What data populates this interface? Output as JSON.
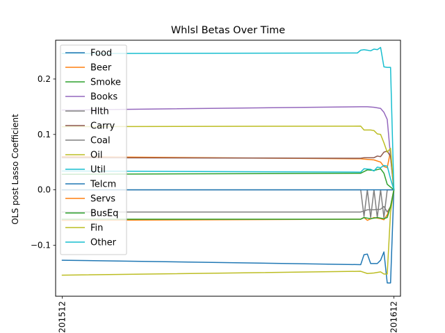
{
  "chart_data": {
    "type": "line",
    "title": "Whlsl Betas Over Time",
    "ylabel": "OLS post Lasso Coefficient",
    "xlabel": "",
    "x_tick_labels": [
      "201512",
      "201612"
    ],
    "y_ticks": [
      -0.1,
      0.0,
      0.1,
      0.2
    ],
    "y_tick_labels": [
      "−0.1",
      "0.0",
      "0.1",
      "0.2"
    ],
    "x_range": [
      -2,
      102
    ],
    "ylim": [
      -0.192,
      0.27
    ],
    "legend_position": "upper-left",
    "grid": false,
    "series": [
      {
        "name": "Food",
        "color": "#1f77b4",
        "points": [
          [
            0,
            -0.127
          ],
          [
            90,
            -0.135
          ],
          [
            91,
            -0.117
          ],
          [
            92,
            -0.116
          ],
          [
            93,
            -0.133
          ],
          [
            95,
            -0.133
          ],
          [
            96,
            -0.127
          ],
          [
            97,
            -0.112
          ],
          [
            98,
            -0.168
          ],
          [
            99,
            -0.168
          ],
          [
            100,
            0.0
          ]
        ]
      },
      {
        "name": "Beer",
        "color": "#ff7f0e",
        "points": [
          [
            0,
            0.06
          ],
          [
            90,
            0.056
          ],
          [
            92,
            0.055
          ],
          [
            94,
            0.054
          ],
          [
            96,
            0.05
          ],
          [
            97,
            0.042
          ],
          [
            98,
            0.04
          ],
          [
            99,
            0.07
          ],
          [
            100,
            0.0
          ]
        ]
      },
      {
        "name": "Smoke",
        "color": "#2ca02c",
        "points": [
          [
            0,
            0.028
          ],
          [
            90,
            0.03
          ],
          [
            92,
            0.036
          ],
          [
            94,
            0.035
          ],
          [
            96,
            0.038
          ],
          [
            97,
            0.03
          ],
          [
            98,
            0.01
          ],
          [
            99,
            0.005
          ],
          [
            100,
            0.0
          ]
        ]
      },
      {
        "name": "Books",
        "color": "#9467bd",
        "points": [
          [
            0,
            0.144
          ],
          [
            90,
            0.15
          ],
          [
            92,
            0.15
          ],
          [
            94,
            0.149
          ],
          [
            96,
            0.147
          ],
          [
            97,
            0.14
          ],
          [
            98,
            0.127
          ],
          [
            99,
            0.06
          ],
          [
            100,
            0.0
          ]
        ]
      },
      {
        "name": "Hlth",
        "color": "#7f7f7f",
        "points": [
          [
            0,
            -0.04
          ],
          [
            90,
            -0.04
          ],
          [
            92,
            -0.036
          ],
          [
            94,
            -0.036
          ],
          [
            96,
            -0.035
          ],
          [
            97,
            -0.03
          ],
          [
            98,
            -0.04
          ],
          [
            99,
            -0.03
          ],
          [
            100,
            0.0
          ]
        ]
      },
      {
        "name": "Carry",
        "color": "#8c564b",
        "points": [
          [
            0,
            0.058
          ],
          [
            90,
            0.057
          ],
          [
            91,
            0.058
          ],
          [
            94,
            0.058
          ],
          [
            95,
            0.061
          ],
          [
            96,
            0.06
          ],
          [
            97,
            0.068
          ],
          [
            98,
            0.07
          ],
          [
            99,
            0.06
          ],
          [
            100,
            0.0
          ]
        ]
      },
      {
        "name": "Coal",
        "color": "#7f7f7f",
        "points": [
          [
            0,
            0.0
          ],
          [
            90,
            0.0
          ],
          [
            91,
            -0.048
          ],
          [
            92,
            0.0
          ],
          [
            93,
            -0.05
          ],
          [
            94,
            0.0
          ],
          [
            95,
            -0.05
          ],
          [
            96,
            0.0
          ],
          [
            97,
            -0.05
          ],
          [
            98,
            0.0
          ],
          [
            100,
            0.0
          ]
        ]
      },
      {
        "name": "Oil",
        "color": "#bcbd22",
        "points": [
          [
            0,
            -0.154
          ],
          [
            90,
            -0.147
          ],
          [
            92,
            -0.151
          ],
          [
            94,
            -0.15
          ],
          [
            96,
            -0.148
          ],
          [
            97,
            -0.152
          ],
          [
            98,
            -0.152
          ],
          [
            99,
            -0.04
          ],
          [
            100,
            0.0
          ]
        ]
      },
      {
        "name": "Util",
        "color": "#17becf",
        "points": [
          [
            0,
            0.034
          ],
          [
            90,
            0.032
          ],
          [
            91,
            0.038
          ],
          [
            93,
            0.037
          ],
          [
            94,
            0.034
          ],
          [
            95,
            0.041
          ],
          [
            96,
            0.04
          ],
          [
            97,
            0.044
          ],
          [
            98,
            0.043
          ],
          [
            99,
            0.02
          ],
          [
            100,
            0.0
          ]
        ]
      },
      {
        "name": "Telcm",
        "color": "#1f77b4",
        "points": [
          [
            0,
            0.0
          ],
          [
            100,
            0.0
          ]
        ]
      },
      {
        "name": "Servs",
        "color": "#ff7f0e",
        "points": [
          [
            0,
            -0.055
          ],
          [
            90,
            -0.053
          ],
          [
            91,
            -0.05
          ],
          [
            92,
            -0.055
          ],
          [
            94,
            -0.05
          ],
          [
            96,
            -0.052
          ],
          [
            97,
            -0.054
          ],
          [
            98,
            -0.045
          ],
          [
            99,
            -0.03
          ],
          [
            100,
            0.0
          ]
        ]
      },
      {
        "name": "BusEq",
        "color": "#2ca02c",
        "points": [
          [
            0,
            -0.053
          ],
          [
            90,
            -0.053
          ],
          [
            91,
            -0.05
          ],
          [
            93,
            -0.052
          ],
          [
            95,
            -0.05
          ],
          [
            97,
            -0.052
          ],
          [
            98,
            -0.05
          ],
          [
            99,
            -0.03
          ],
          [
            100,
            0.0
          ]
        ]
      },
      {
        "name": "Fin",
        "color": "#bcbd22",
        "points": [
          [
            0,
            0.114
          ],
          [
            90,
            0.115
          ],
          [
            91,
            0.108
          ],
          [
            93,
            0.108
          ],
          [
            94,
            0.107
          ],
          [
            95,
            0.101
          ],
          [
            96,
            0.1
          ],
          [
            97,
            0.085
          ],
          [
            98,
            0.068
          ],
          [
            99,
            0.075
          ],
          [
            100,
            0.0
          ]
        ]
      },
      {
        "name": "Other",
        "color": "#17becf",
        "points": [
          [
            0,
            0.246
          ],
          [
            89,
            0.247
          ],
          [
            90,
            0.252
          ],
          [
            91,
            0.253
          ],
          [
            92,
            0.252
          ],
          [
            93,
            0.251
          ],
          [
            94,
            0.254
          ],
          [
            95,
            0.253
          ],
          [
            96,
            0.257
          ],
          [
            97,
            0.222
          ],
          [
            98,
            0.221
          ],
          [
            99,
            0.221
          ],
          [
            100,
            0.0
          ]
        ]
      }
    ]
  }
}
